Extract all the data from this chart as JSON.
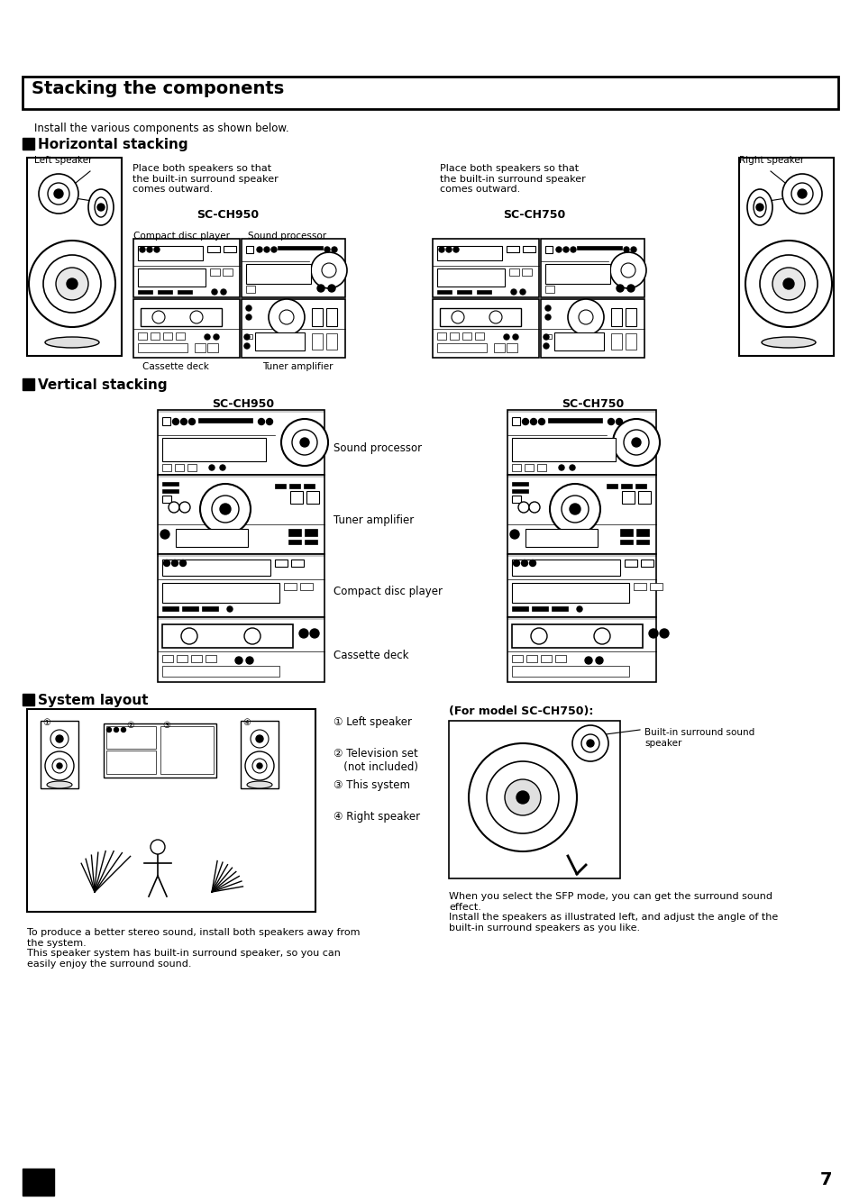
{
  "page_title": "Stacking the components",
  "install_text": "Install the various components as shown below.",
  "section1_title": "Horizontal stacking",
  "section2_title": "Vertical stacking",
  "section3_title": "System layout",
  "left_speaker_label": "Left speaker",
  "right_speaker_label": "Right speaker",
  "place_text_left": "Place both speakers so that\nthe built-in surround speaker\ncomes outward.",
  "place_text_right": "Place both speakers so that\nthe built-in surround speaker\ncomes outward.",
  "model1": "SC-CH950",
  "model2": "SC-CH750",
  "cd_player_label": "Compact disc player",
  "sound_proc_label": "Sound processor",
  "cassette_label": "Cassette deck",
  "tuner_label": "Tuner amplifier",
  "vert_labels": [
    "Sound processor",
    "Tuner amplifier",
    "Compact disc player",
    "Cassette deck"
  ],
  "system_items": [
    "① Left speaker",
    "② Television set\n   (not included)",
    "③ This system",
    "④ Right speaker"
  ],
  "for_model_text": "(For model SC-CH750):",
  "builtin_label": "Built-in surround sound\nspeaker",
  "sfp_text": "When you select the SFP mode, you can get the surround sound\neffect.\nInstall the speakers as illustrated left, and adjust the angle of the\nbuilt-in surround speakers as you like.",
  "footer_text": "To produce a better stereo sound, install both speakers away from\nthe system.\nThis speaker system has built-in surround speaker, so you can\neasily enjoy the surround sound.",
  "page_number": "7",
  "bg_color": "#ffffff",
  "text_color": "#000000"
}
